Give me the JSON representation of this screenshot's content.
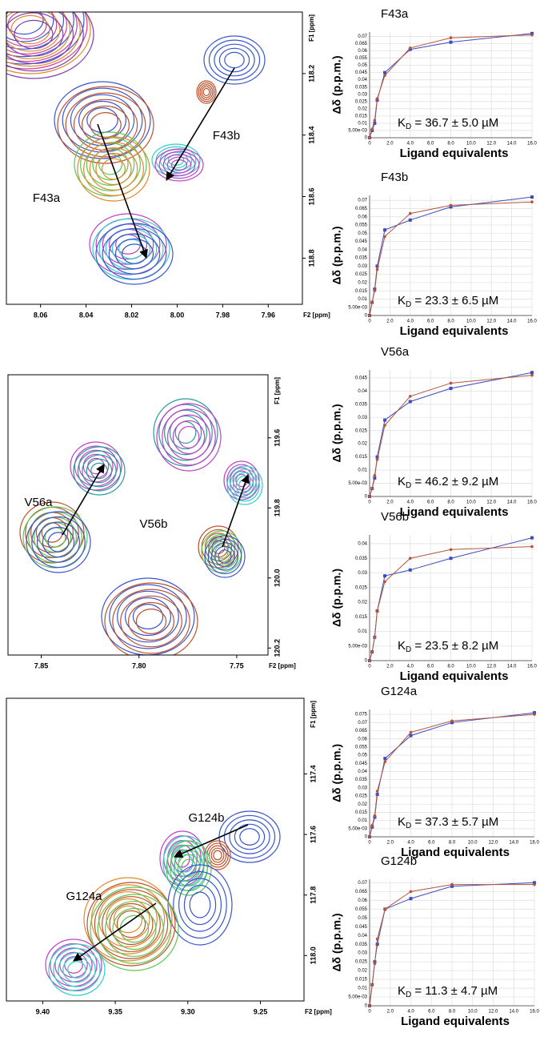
{
  "chart_data": [
    {
      "type": "nmr",
      "xlabel": "F2 [ppm]",
      "ylabel": "F1 [ppm]",
      "peak_labels": [
        "F43a",
        "F43b"
      ],
      "xlim": [
        8.075,
        7.945
      ],
      "xticks": [
        8.06,
        8.04,
        8.02,
        {
          "value": 8,
          "label": "8.00"
        },
        7.98,
        7.96
      ],
      "ylim": [
        118.0,
        118.95
      ],
      "yticks": [
        118.2,
        118.4,
        118.6,
        118.8
      ]
    },
    {
      "type": "line",
      "title": "F43a",
      "xlabel": "Ligand equivalents",
      "ylabel": "Δδ (p.p.m.)",
      "annotation": [
        "K",
        "D",
        " = 36.7 ± 5.0 µM"
      ],
      "x": [
        0,
        0.25,
        0.5,
        0.75,
        1.5,
        4,
        8,
        16
      ],
      "series": [
        {
          "color": "#3b4cc0",
          "marker": "square",
          "values": [
            0,
            0.005,
            0.01,
            0.026,
            0.045,
            0.061,
            0.066,
            0.072
          ]
        },
        {
          "color": "#b4553c",
          "marker": "circle",
          "values": [
            0,
            0.006,
            0.012,
            0.027,
            0.043,
            0.062,
            0.069,
            0.071
          ]
        }
      ],
      "xlim": [
        0,
        16
      ],
      "xticks": [
        0,
        {
          "value": 2,
          "label": "2.0"
        },
        {
          "value": 4,
          "label": "4.0"
        },
        {
          "value": 6,
          "label": "6.0"
        },
        {
          "value": 8,
          "label": "8.0"
        },
        {
          "value": 10,
          "label": "10.0"
        },
        {
          "value": 12,
          "label": "12.0"
        },
        {
          "value": 14,
          "label": "14.0"
        },
        {
          "value": 16,
          "label": "16.0"
        }
      ],
      "ylim": [
        0,
        0.073
      ],
      "yticks": [
        0,
        {
          "value": 0.005,
          "label": "5.00e-03"
        },
        0.01,
        0.015,
        0.02,
        0.025,
        0.03,
        0.035,
        0.04,
        0.045,
        0.05,
        0.055,
        0.06,
        0.065,
        0.07
      ],
      "grid": true
    },
    {
      "type": "line",
      "title": "F43b",
      "xlabel": "Ligand equivalents",
      "ylabel": "Δδ (p.p.m.)",
      "annotation": [
        "K",
        "D",
        " = 23.3 ± 6.5 µM"
      ],
      "x": [
        0,
        0.25,
        0.5,
        0.75,
        1.5,
        4,
        8,
        16
      ],
      "series": [
        {
          "color": "#3b4cc0",
          "marker": "square",
          "values": [
            0,
            0.008,
            0.016,
            0.03,
            0.052,
            0.058,
            0.066,
            0.072
          ]
        },
        {
          "color": "#b4553c",
          "marker": "circle",
          "values": [
            0,
            0.008,
            0.015,
            0.028,
            0.048,
            0.062,
            0.067,
            0.069
          ]
        }
      ],
      "xlim": [
        0,
        16
      ],
      "xticks": [
        0,
        {
          "value": 2,
          "label": "2.0"
        },
        {
          "value": 4,
          "label": "4.0"
        },
        {
          "value": 6,
          "label": "6.0"
        },
        {
          "value": 8,
          "label": "8.0"
        },
        {
          "value": 10,
          "label": "10.0"
        },
        {
          "value": 12,
          "label": "12.0"
        },
        {
          "value": 14,
          "label": "14.0"
        },
        {
          "value": 16,
          "label": "16.0"
        }
      ],
      "ylim": [
        0,
        0.073
      ],
      "yticks": [
        0,
        {
          "value": 0.005,
          "label": "5.00e-03"
        },
        0.01,
        0.015,
        0.02,
        0.025,
        0.03,
        0.035,
        0.04,
        0.045,
        0.05,
        0.055,
        0.06,
        0.065,
        0.07
      ],
      "grid": true
    },
    {
      "type": "nmr",
      "xlabel": "F2 [ppm]",
      "ylabel": "F1 [ppm]",
      "peak_labels": [
        "V56a",
        "V56b"
      ],
      "xlim": [
        7.867,
        7.734
      ],
      "xticks": [
        7.85,
        {
          "value": 7.8,
          "label": "7.80"
        },
        7.75
      ],
      "ylim": [
        119.42,
        120.22
      ],
      "yticks": [
        119.6,
        119.8,
        {
          "value": 120,
          "label": "120.0"
        },
        120.2
      ]
    },
    {
      "type": "line",
      "title": "V56a",
      "xlabel": "Ligand equivalents",
      "ylabel": "Δδ (p.p.m.)",
      "annotation": [
        "K",
        "D",
        " = 46.2 ± 9.2 µM"
      ],
      "x": [
        0,
        0.25,
        0.5,
        0.75,
        1.5,
        4,
        8,
        16
      ],
      "series": [
        {
          "color": "#3b4cc0",
          "marker": "square",
          "values": [
            0,
            0.003,
            0.007,
            0.015,
            0.029,
            0.036,
            0.041,
            0.047
          ]
        },
        {
          "color": "#b4553c",
          "marker": "circle",
          "values": [
            0,
            0.003,
            0.008,
            0.014,
            0.027,
            0.038,
            0.043,
            0.046
          ]
        }
      ],
      "xlim": [
        0,
        16
      ],
      "xticks": [
        0,
        {
          "value": 2,
          "label": "2.0"
        },
        {
          "value": 4,
          "label": "4.0"
        },
        {
          "value": 6,
          "label": "6.0"
        },
        {
          "value": 8,
          "label": "8.0"
        },
        {
          "value": 10,
          "label": "10.0"
        },
        {
          "value": 12,
          "label": "12.0"
        },
        {
          "value": 14,
          "label": "14.0"
        },
        {
          "value": 16,
          "label": "16.0"
        }
      ],
      "ylim": [
        0,
        0.048
      ],
      "yticks": [
        0,
        {
          "value": 0.005,
          "label": "5.00e-03"
        },
        0.01,
        0.015,
        0.02,
        0.025,
        0.03,
        0.035,
        0.04,
        0.045
      ],
      "grid": true
    },
    {
      "type": "line",
      "title": "V56b",
      "xlabel": "Ligand equivalents",
      "ylabel": "Δδ (p.p.m.)",
      "annotation": [
        "K",
        "D",
        " = 23.5 ± 8.2 µM"
      ],
      "x": [
        0,
        0.25,
        0.5,
        0.75,
        1.5,
        4,
        8,
        16
      ],
      "series": [
        {
          "color": "#3b4cc0",
          "marker": "square",
          "values": [
            0,
            0.003,
            0.008,
            0.017,
            0.029,
            0.031,
            0.035,
            0.042
          ]
        },
        {
          "color": "#b4553c",
          "marker": "circle",
          "values": [
            0,
            0.003,
            0.008,
            0.017,
            0.027,
            0.035,
            0.038,
            0.039
          ]
        }
      ],
      "xlim": [
        0,
        16
      ],
      "xticks": [
        0,
        {
          "value": 2,
          "label": "2.0"
        },
        {
          "value": 4,
          "label": "4.0"
        },
        {
          "value": 6,
          "label": "6.0"
        },
        {
          "value": 8,
          "label": "8.0"
        },
        {
          "value": 10,
          "label": "10.0"
        },
        {
          "value": 12,
          "label": "12.0"
        },
        {
          "value": 14,
          "label": "14.0"
        },
        {
          "value": 16,
          "label": "16.0"
        }
      ],
      "ylim": [
        0,
        0.043
      ],
      "yticks": [
        0,
        {
          "value": 0.005,
          "label": "5.00e-03"
        },
        0.01,
        0.015,
        0.02,
        0.025,
        0.03,
        0.035,
        0.04
      ],
      "grid": true
    },
    {
      "type": "nmr",
      "xlabel": "F2 [ppm]",
      "ylabel": "F1 [ppm]",
      "peak_labels": [
        "G124a",
        "G124b"
      ],
      "xlim": [
        9.425,
        9.22
      ],
      "xticks": [
        {
          "value": 9.4,
          "label": "9.40"
        },
        9.35,
        {
          "value": 9.3,
          "label": "9.30"
        },
        9.25
      ],
      "ylim": [
        117.15,
        118.15
      ],
      "yticks": [
        117.4,
        117.6,
        117.8,
        {
          "value": 118,
          "label": "118.0"
        }
      ]
    },
    {
      "type": "line",
      "title": "G124a",
      "xlabel": "Ligand equivalents",
      "ylabel": "Δδ (p.p.m.)",
      "annotation": [
        "K",
        "D",
        " = 37.3 ± 5.7 µM"
      ],
      "x": [
        0,
        0.25,
        0.5,
        0.75,
        1.5,
        4,
        8,
        16
      ],
      "series": [
        {
          "color": "#3b4cc0",
          "marker": "square",
          "values": [
            0,
            0.006,
            0.012,
            0.026,
            0.048,
            0.062,
            0.07,
            0.076
          ]
        },
        {
          "color": "#b4553c",
          "marker": "circle",
          "values": [
            0,
            0.007,
            0.013,
            0.028,
            0.046,
            0.064,
            0.071,
            0.075
          ]
        }
      ],
      "xlim": [
        0,
        16
      ],
      "xticks": [
        0,
        {
          "value": 2,
          "label": "2.0"
        },
        {
          "value": 4,
          "label": "4.0"
        },
        {
          "value": 6,
          "label": "6.0"
        },
        {
          "value": 8,
          "label": "8.0"
        },
        {
          "value": 10,
          "label": "10.0"
        },
        {
          "value": 12,
          "label": "12.0"
        },
        {
          "value": 14,
          "label": "14.0"
        },
        {
          "value": 16,
          "label": "16.0"
        }
      ],
      "ylim": [
        0,
        0.078
      ],
      "yticks": [
        0,
        {
          "value": 0.005,
          "label": "5.00e-03"
        },
        0.01,
        0.015,
        0.02,
        0.025,
        0.03,
        0.035,
        0.04,
        0.045,
        0.05,
        0.055,
        0.06,
        0.065,
        0.07,
        0.075
      ],
      "grid": true
    },
    {
      "type": "line",
      "title": "G124b",
      "xlabel": "Ligand equivalents",
      "ylabel": "Δδ (p.p.m.)",
      "annotation": [
        "K",
        "D",
        " = 11.3 ± 4.7 µM"
      ],
      "x": [
        0,
        0.25,
        0.5,
        0.75,
        1.5,
        4,
        8,
        16
      ],
      "series": [
        {
          "color": "#3b4cc0",
          "marker": "square",
          "values": [
            0,
            0.012,
            0.025,
            0.035,
            0.055,
            0.061,
            0.068,
            0.07
          ]
        },
        {
          "color": "#b4553c",
          "marker": "circle",
          "values": [
            0,
            0.012,
            0.024,
            0.038,
            0.055,
            0.065,
            0.069,
            0.069
          ]
        }
      ],
      "xlim": [
        0,
        16
      ],
      "xticks": [
        0,
        {
          "value": 2,
          "label": "2.0"
        },
        {
          "value": 4,
          "label": "4.0"
        },
        {
          "value": 6,
          "label": "6.0"
        },
        {
          "value": 8,
          "label": "8.0"
        },
        {
          "value": 10,
          "label": "10.0"
        },
        {
          "value": 12,
          "label": "12.0"
        },
        {
          "value": 14,
          "label": "14.0"
        },
        {
          "value": 16,
          "label": "16.0"
        }
      ],
      "ylim": [
        0,
        0.072
      ],
      "yticks": [
        0,
        {
          "value": 0.005,
          "label": "5.00e-03"
        },
        0.01,
        0.015,
        0.02,
        0.025,
        0.03,
        0.035,
        0.04,
        0.045,
        0.05,
        0.055,
        0.06,
        0.065,
        0.07
      ],
      "grid": true
    }
  ]
}
